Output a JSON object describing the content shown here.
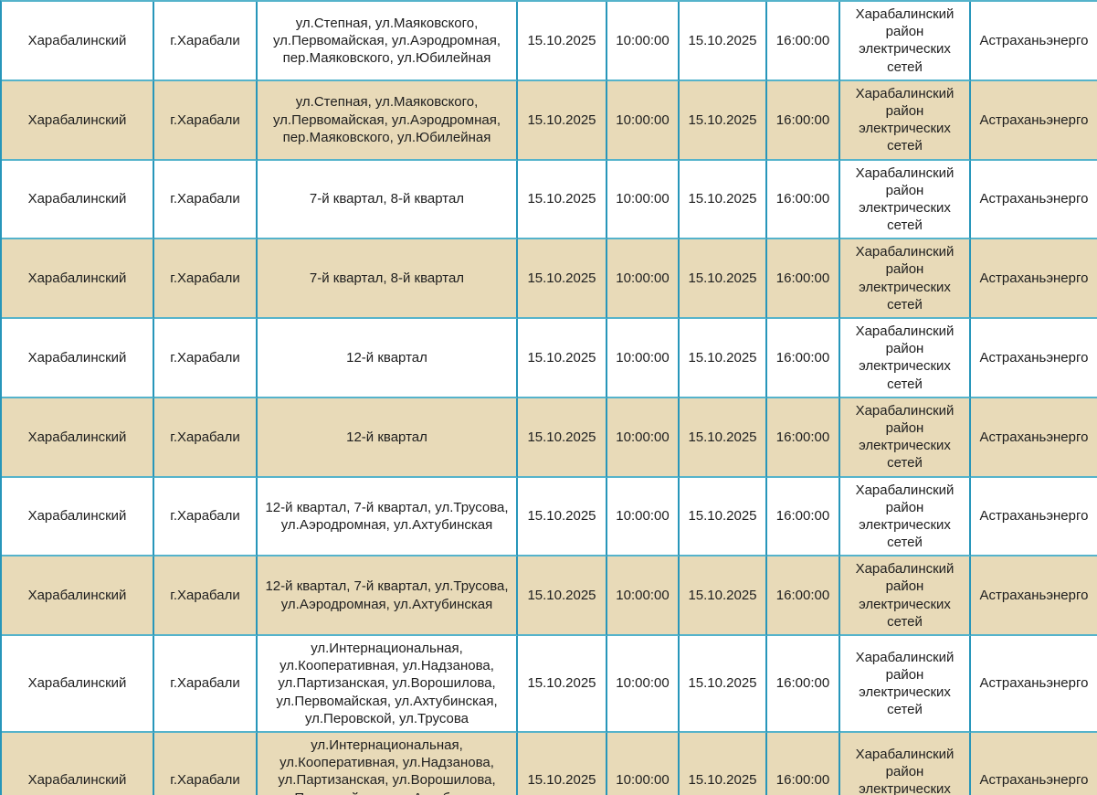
{
  "table": {
    "description": "Planned power outage schedule table",
    "colors": {
      "border_vertical": "#2796ba",
      "border_horizontal": "#55b3cb",
      "row_alternate": "#e8dab8",
      "row_base": "#ffffff",
      "text": "#1e1e1e"
    },
    "columns": [
      {
        "key": "district"
      },
      {
        "key": "settlement"
      },
      {
        "key": "streets"
      },
      {
        "key": "start_date"
      },
      {
        "key": "start_time"
      },
      {
        "key": "end_date"
      },
      {
        "key": "end_time"
      },
      {
        "key": "network_division"
      },
      {
        "key": "company"
      }
    ],
    "rows": [
      {
        "district": "Харабалинский",
        "settlement": "г.Харабали",
        "streets": "ул.Степная, ул.Маяковского, ул.Первомайская, ул.Аэродромная, пер.Маяковского, ул.Юбилейная",
        "start_date": "15.10.2025",
        "start_time": "10:00:00",
        "end_date": "15.10.2025",
        "end_time": "16:00:00",
        "network_division": "Харабалинский район электрических сетей",
        "company": "Астраханьэнерго"
      },
      {
        "district": "Харабалинский",
        "settlement": "г.Харабали",
        "streets": "ул.Степная, ул.Маяковского, ул.Первомайская, ул.Аэродромная, пер.Маяковского, ул.Юбилейная",
        "start_date": "15.10.2025",
        "start_time": "10:00:00",
        "end_date": "15.10.2025",
        "end_time": "16:00:00",
        "network_division": "Харабалинский район электрических сетей",
        "company": "Астраханьэнерго"
      },
      {
        "district": "Харабалинский",
        "settlement": "г.Харабали",
        "streets": "7-й квартал, 8-й квартал",
        "start_date": "15.10.2025",
        "start_time": "10:00:00",
        "end_date": "15.10.2025",
        "end_time": "16:00:00",
        "network_division": "Харабалинский район электрических сетей",
        "company": "Астраханьэнерго"
      },
      {
        "district": "Харабалинский",
        "settlement": "г.Харабали",
        "streets": "7-й квартал, 8-й квартал",
        "start_date": "15.10.2025",
        "start_time": "10:00:00",
        "end_date": "15.10.2025",
        "end_time": "16:00:00",
        "network_division": "Харабалинский район электрических сетей",
        "company": "Астраханьэнерго"
      },
      {
        "district": "Харабалинский",
        "settlement": "г.Харабали",
        "streets": "12-й квартал",
        "start_date": "15.10.2025",
        "start_time": "10:00:00",
        "end_date": "15.10.2025",
        "end_time": "16:00:00",
        "network_division": "Харабалинский район электрических сетей",
        "company": "Астраханьэнерго"
      },
      {
        "district": "Харабалинский",
        "settlement": "г.Харабали",
        "streets": "12-й квартал",
        "start_date": "15.10.2025",
        "start_time": "10:00:00",
        "end_date": "15.10.2025",
        "end_time": "16:00:00",
        "network_division": "Харабалинский район электрических сетей",
        "company": "Астраханьэнерго"
      },
      {
        "district": "Харабалинский",
        "settlement": "г.Харабали",
        "streets": "12-й квартал, 7-й квартал, ул.Трусова, ул.Аэродромная, ул.Ахтубинская",
        "start_date": "15.10.2025",
        "start_time": "10:00:00",
        "end_date": "15.10.2025",
        "end_time": "16:00:00",
        "network_division": "Харабалинский район электрических сетей",
        "company": "Астраханьэнерго"
      },
      {
        "district": "Харабалинский",
        "settlement": "г.Харабали",
        "streets": "12-й квартал, 7-й квартал, ул.Трусова, ул.Аэродромная, ул.Ахтубинская",
        "start_date": "15.10.2025",
        "start_time": "10:00:00",
        "end_date": "15.10.2025",
        "end_time": "16:00:00",
        "network_division": "Харабалинский район электрических сетей",
        "company": "Астраханьэнерго"
      },
      {
        "district": "Харабалинский",
        "settlement": "г.Харабали",
        "streets": "ул.Интернациональная, ул.Кооперативная, ул.Надзанова, ул.Партизанская, ул.Ворошилова, ул.Первомайская, ул.Ахтубинская, ул.Перовской, ул.Трусова",
        "start_date": "15.10.2025",
        "start_time": "10:00:00",
        "end_date": "15.10.2025",
        "end_time": "16:00:00",
        "network_division": "Харабалинский район электрических сетей",
        "company": "Астраханьэнерго"
      },
      {
        "district": "Харабалинский",
        "settlement": "г.Харабали",
        "streets": "ул.Интернациональная, ул.Кооперативная, ул.Надзанова, ул.Партизанская, ул.Ворошилова, ул.Первомайская, ул.Ахтубинская, ул.Перовской, ул.Трусова",
        "start_date": "15.10.2025",
        "start_time": "10:00:00",
        "end_date": "15.10.2025",
        "end_time": "16:00:00",
        "network_division": "Харабалинский район электрических сетей",
        "company": "Астраханьэнерго"
      }
    ]
  }
}
